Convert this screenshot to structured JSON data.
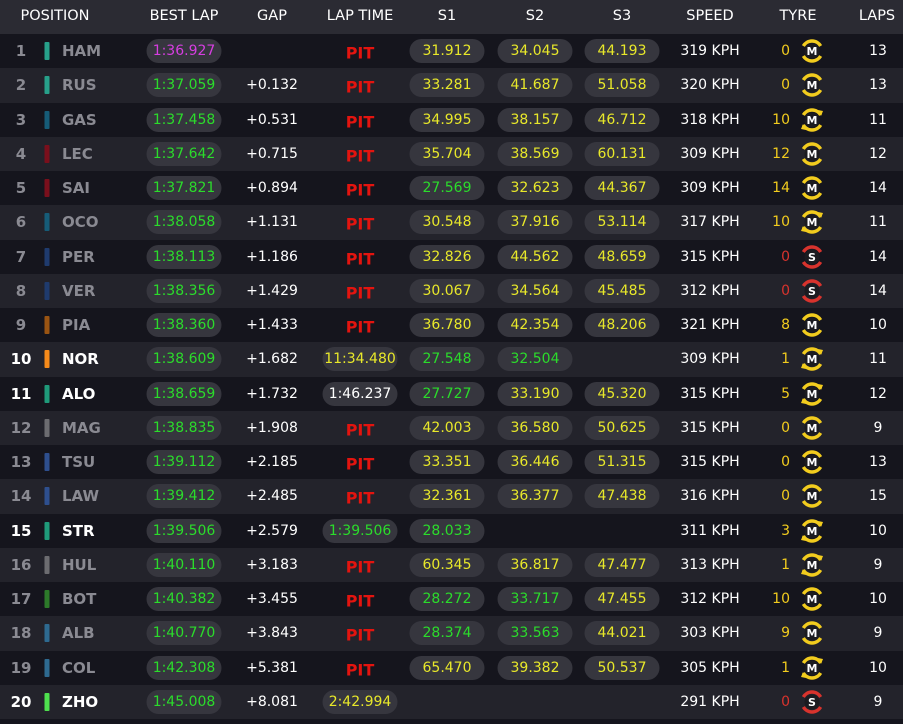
{
  "header": {
    "position": "POSITION",
    "best_lap": "BEST LAP",
    "gap": "GAP",
    "lap_time": "LAP TIME",
    "s1": "S1",
    "s2": "S2",
    "s3": "S3",
    "speed": "SPEED",
    "tyre": "TYRE",
    "laps": "LAPS"
  },
  "colors": {
    "purple": "#d63ee0",
    "green": "#2bdc2b",
    "yellow": "#e8e82a",
    "white": "#ffffff",
    "pit": "#e3140f",
    "medium": "#f2cc1e",
    "soft": "#d8332d"
  },
  "rows": [
    {
      "pos": "1",
      "team_color": "#27a08a",
      "name": "HAM",
      "live": false,
      "best": "1:36.927",
      "best_c": "purple",
      "gap": "",
      "lap": "PIT",
      "lap_c": "pit",
      "s1": "31.912",
      "s1_c": "yellow",
      "s2": "34.045",
      "s2_c": "yellow",
      "s3": "44.193",
      "s3_c": "yellow",
      "speed": "319 KPH",
      "age": "0",
      "tyre": "M",
      "used": false,
      "laps": "13"
    },
    {
      "pos": "2",
      "team_color": "#27a08a",
      "name": "RUS",
      "live": false,
      "best": "1:37.059",
      "best_c": "green",
      "gap": "+0.132",
      "lap": "PIT",
      "lap_c": "pit",
      "s1": "33.281",
      "s1_c": "yellow",
      "s2": "41.687",
      "s2_c": "yellow",
      "s3": "51.058",
      "s3_c": "yellow",
      "speed": "320 KPH",
      "age": "0",
      "tyre": "M",
      "used": false,
      "laps": "13"
    },
    {
      "pos": "3",
      "team_color": "#165c78",
      "name": "GAS",
      "live": false,
      "best": "1:37.458",
      "best_c": "green",
      "gap": "+0.531",
      "lap": "PIT",
      "lap_c": "pit",
      "s1": "34.995",
      "s1_c": "yellow",
      "s2": "38.157",
      "s2_c": "yellow",
      "s3": "46.712",
      "s3_c": "yellow",
      "speed": "318 KPH",
      "age": "10",
      "tyre": "M",
      "used": true,
      "laps": "11"
    },
    {
      "pos": "4",
      "team_color": "#7a0f1c",
      "name": "LEC",
      "live": false,
      "best": "1:37.642",
      "best_c": "green",
      "gap": "+0.715",
      "lap": "PIT",
      "lap_c": "pit",
      "s1": "35.704",
      "s1_c": "yellow",
      "s2": "38.569",
      "s2_c": "yellow",
      "s3": "60.131",
      "s3_c": "yellow",
      "speed": "309 KPH",
      "age": "12",
      "tyre": "M",
      "used": false,
      "laps": "12"
    },
    {
      "pos": "5",
      "team_color": "#7a0f1c",
      "name": "SAI",
      "live": false,
      "best": "1:37.821",
      "best_c": "green",
      "gap": "+0.894",
      "lap": "PIT",
      "lap_c": "pit",
      "s1": "27.569",
      "s1_c": "green",
      "s2": "32.623",
      "s2_c": "yellow",
      "s3": "44.367",
      "s3_c": "yellow",
      "speed": "309 KPH",
      "age": "14",
      "tyre": "M",
      "used": false,
      "laps": "14"
    },
    {
      "pos": "6",
      "team_color": "#165c78",
      "name": "OCO",
      "live": false,
      "best": "1:38.058",
      "best_c": "green",
      "gap": "+1.131",
      "lap": "PIT",
      "lap_c": "pit",
      "s1": "30.548",
      "s1_c": "yellow",
      "s2": "37.916",
      "s2_c": "yellow",
      "s3": "53.114",
      "s3_c": "yellow",
      "speed": "317 KPH",
      "age": "10",
      "tyre": "M",
      "used": true,
      "laps": "11"
    },
    {
      "pos": "7",
      "team_color": "#1f3b6e",
      "name": "PER",
      "live": false,
      "best": "1:38.113",
      "best_c": "green",
      "gap": "+1.186",
      "lap": "PIT",
      "lap_c": "pit",
      "s1": "32.826",
      "s1_c": "yellow",
      "s2": "44.562",
      "s2_c": "yellow",
      "s3": "48.659",
      "s3_c": "yellow",
      "speed": "315 KPH",
      "age": "0",
      "tyre": "S",
      "used": false,
      "laps": "14"
    },
    {
      "pos": "8",
      "team_color": "#1f3b6e",
      "name": "VER",
      "live": false,
      "best": "1:38.356",
      "best_c": "green",
      "gap": "+1.429",
      "lap": "PIT",
      "lap_c": "pit",
      "s1": "30.067",
      "s1_c": "yellow",
      "s2": "34.564",
      "s2_c": "yellow",
      "s3": "45.485",
      "s3_c": "yellow",
      "speed": "312 KPH",
      "age": "0",
      "tyre": "S",
      "used": false,
      "laps": "14"
    },
    {
      "pos": "9",
      "team_color": "#9a5412",
      "name": "PIA",
      "live": false,
      "best": "1:38.360",
      "best_c": "green",
      "gap": "+1.433",
      "lap": "PIT",
      "lap_c": "pit",
      "s1": "36.780",
      "s1_c": "yellow",
      "s2": "42.354",
      "s2_c": "yellow",
      "s3": "48.206",
      "s3_c": "yellow",
      "speed": "321 KPH",
      "age": "8",
      "tyre": "M",
      "used": false,
      "laps": "10"
    },
    {
      "pos": "10",
      "team_color": "#f58a1a",
      "name": "NOR",
      "live": true,
      "best": "1:38.609",
      "best_c": "green",
      "gap": "+1.682",
      "lap": "11:34.480",
      "lap_c": "yellow",
      "s1": "27.548",
      "s1_c": "green",
      "s2": "32.504",
      "s2_c": "green",
      "s3": "",
      "s3_c": "yellow",
      "speed": "309 KPH",
      "age": "1",
      "tyre": "M",
      "used": true,
      "laps": "11"
    },
    {
      "pos": "11",
      "team_color": "#1f9a7a",
      "name": "ALO",
      "live": true,
      "best": "1:38.659",
      "best_c": "green",
      "gap": "+1.732",
      "lap": "1:46.237",
      "lap_c": "white",
      "s1": "27.727",
      "s1_c": "green",
      "s2": "33.190",
      "s2_c": "yellow",
      "s3": "45.320",
      "s3_c": "yellow",
      "speed": "315 KPH",
      "age": "5",
      "tyre": "M",
      "used": true,
      "laps": "12"
    },
    {
      "pos": "12",
      "team_color": "#6c6c70",
      "name": "MAG",
      "live": false,
      "best": "1:38.835",
      "best_c": "green",
      "gap": "+1.908",
      "lap": "PIT",
      "lap_c": "pit",
      "s1": "42.003",
      "s1_c": "yellow",
      "s2": "36.580",
      "s2_c": "yellow",
      "s3": "50.625",
      "s3_c": "yellow",
      "speed": "315 KPH",
      "age": "0",
      "tyre": "M",
      "used": false,
      "laps": "9"
    },
    {
      "pos": "13",
      "team_color": "#2e4f8e",
      "name": "TSU",
      "live": false,
      "best": "1:39.112",
      "best_c": "green",
      "gap": "+2.185",
      "lap": "PIT",
      "lap_c": "pit",
      "s1": "33.351",
      "s1_c": "yellow",
      "s2": "36.446",
      "s2_c": "yellow",
      "s3": "51.315",
      "s3_c": "yellow",
      "speed": "315 KPH",
      "age": "0",
      "tyre": "M",
      "used": false,
      "laps": "13"
    },
    {
      "pos": "14",
      "team_color": "#2e4f8e",
      "name": "LAW",
      "live": false,
      "best": "1:39.412",
      "best_c": "green",
      "gap": "+2.485",
      "lap": "PIT",
      "lap_c": "pit",
      "s1": "32.361",
      "s1_c": "yellow",
      "s2": "36.377",
      "s2_c": "yellow",
      "s3": "47.438",
      "s3_c": "yellow",
      "speed": "316 KPH",
      "age": "0",
      "tyre": "M",
      "used": false,
      "laps": "15"
    },
    {
      "pos": "15",
      "team_color": "#1f9a7a",
      "name": "STR",
      "live": true,
      "best": "1:39.506",
      "best_c": "green",
      "gap": "+2.579",
      "lap": "1:39.506",
      "lap_c": "green",
      "s1": "28.033",
      "s1_c": "green",
      "s2": "",
      "s2_c": "yellow",
      "s3": "",
      "s3_c": "yellow",
      "speed": "311 KPH",
      "age": "3",
      "tyre": "M",
      "used": true,
      "laps": "10"
    },
    {
      "pos": "16",
      "team_color": "#6c6c70",
      "name": "HUL",
      "live": false,
      "best": "1:40.110",
      "best_c": "green",
      "gap": "+3.183",
      "lap": "PIT",
      "lap_c": "pit",
      "s1": "60.345",
      "s1_c": "yellow",
      "s2": "36.817",
      "s2_c": "yellow",
      "s3": "47.477",
      "s3_c": "yellow",
      "speed": "313 KPH",
      "age": "1",
      "tyre": "M",
      "used": true,
      "laps": "9"
    },
    {
      "pos": "17",
      "team_color": "#2d7a2a",
      "name": "BOT",
      "live": false,
      "best": "1:40.382",
      "best_c": "green",
      "gap": "+3.455",
      "lap": "PIT",
      "lap_c": "pit",
      "s1": "28.272",
      "s1_c": "green",
      "s2": "33.717",
      "s2_c": "green",
      "s3": "47.455",
      "s3_c": "yellow",
      "speed": "312 KPH",
      "age": "10",
      "tyre": "M",
      "used": false,
      "laps": "10"
    },
    {
      "pos": "18",
      "team_color": "#2e6a90",
      "name": "ALB",
      "live": false,
      "best": "1:40.770",
      "best_c": "green",
      "gap": "+3.843",
      "lap": "PIT",
      "lap_c": "pit",
      "s1": "28.374",
      "s1_c": "green",
      "s2": "33.563",
      "s2_c": "green",
      "s3": "44.021",
      "s3_c": "yellow",
      "speed": "303 KPH",
      "age": "9",
      "tyre": "M",
      "used": false,
      "laps": "9"
    },
    {
      "pos": "19",
      "team_color": "#2e6a90",
      "name": "COL",
      "live": false,
      "best": "1:42.308",
      "best_c": "green",
      "gap": "+5.381",
      "lap": "PIT",
      "lap_c": "pit",
      "s1": "65.470",
      "s1_c": "yellow",
      "s2": "39.382",
      "s2_c": "yellow",
      "s3": "50.537",
      "s3_c": "yellow",
      "speed": "305 KPH",
      "age": "1",
      "tyre": "M",
      "used": true,
      "laps": "10"
    },
    {
      "pos": "20",
      "team_color": "#4ee04e",
      "name": "ZHO",
      "live": true,
      "best": "1:45.008",
      "best_c": "green",
      "gap": "+8.081",
      "lap": "2:42.994",
      "lap_c": "yellow",
      "s1": "",
      "s1_c": "yellow",
      "s2": "",
      "s2_c": "yellow",
      "s3": "",
      "s3_c": "yellow",
      "speed": "291 KPH",
      "age": "0",
      "tyre": "S",
      "used": false,
      "laps": "9"
    }
  ]
}
